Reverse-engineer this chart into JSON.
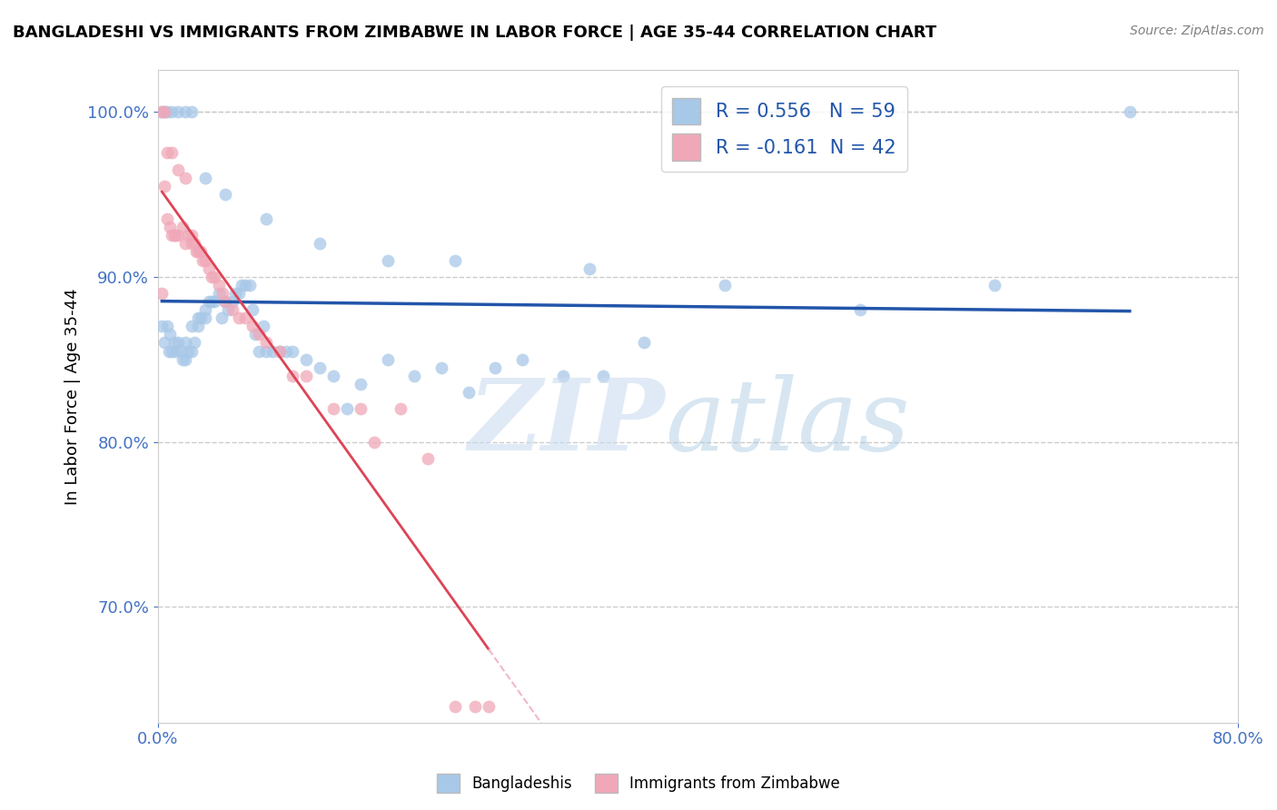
{
  "title": "BANGLADESHI VS IMMIGRANTS FROM ZIMBABWE IN LABOR FORCE | AGE 35-44 CORRELATION CHART",
  "source": "Source: ZipAtlas.com",
  "ylabel": "In Labor Force | Age 35-44",
  "xlim": [
    0.0,
    0.8
  ],
  "ylim": [
    0.63,
    1.025
  ],
  "yticks": [
    0.7,
    0.8,
    0.9,
    1.0
  ],
  "blue_R": 0.556,
  "blue_N": 59,
  "pink_R": -0.161,
  "pink_N": 42,
  "blue_color": "#a8c8e8",
  "pink_color": "#f0a8b8",
  "blue_line_color": "#2255aa",
  "pink_line_color": "#dd4455",
  "pink_dash_color": "#f0b8c8",
  "legend_label_blue": "Bangladeshis",
  "legend_label_pink": "Immigrants from Zimbabwe",
  "blue_scatter_x": [
    0.003,
    0.005,
    0.007,
    0.008,
    0.009,
    0.01,
    0.012,
    0.013,
    0.015,
    0.017,
    0.018,
    0.02,
    0.02,
    0.022,
    0.025,
    0.025,
    0.027,
    0.03,
    0.03,
    0.032,
    0.035,
    0.035,
    0.038,
    0.04,
    0.042,
    0.045,
    0.047,
    0.05,
    0.052,
    0.055,
    0.057,
    0.06,
    0.062,
    0.065,
    0.068,
    0.07,
    0.072,
    0.075,
    0.078,
    0.08,
    0.085,
    0.09,
    0.095,
    0.1,
    0.11,
    0.12,
    0.13,
    0.14,
    0.15,
    0.17,
    0.19,
    0.21,
    0.23,
    0.25,
    0.27,
    0.3,
    0.33,
    0.36,
    0.72
  ],
  "blue_scatter_y": [
    0.87,
    0.86,
    0.87,
    0.855,
    0.865,
    0.855,
    0.86,
    0.855,
    0.86,
    0.855,
    0.85,
    0.86,
    0.85,
    0.855,
    0.855,
    0.87,
    0.86,
    0.875,
    0.87,
    0.875,
    0.88,
    0.875,
    0.885,
    0.885,
    0.885,
    0.89,
    0.875,
    0.885,
    0.88,
    0.885,
    0.89,
    0.89,
    0.895,
    0.895,
    0.895,
    0.88,
    0.865,
    0.855,
    0.87,
    0.855,
    0.855,
    0.855,
    0.855,
    0.855,
    0.85,
    0.845,
    0.84,
    0.82,
    0.835,
    0.85,
    0.84,
    0.845,
    0.83,
    0.845,
    0.85,
    0.84,
    0.84,
    0.86,
    1.0
  ],
  "pink_scatter_x": [
    0.003,
    0.005,
    0.007,
    0.009,
    0.01,
    0.012,
    0.013,
    0.015,
    0.018,
    0.02,
    0.022,
    0.025,
    0.025,
    0.027,
    0.028,
    0.03,
    0.032,
    0.033,
    0.035,
    0.038,
    0.04,
    0.042,
    0.045,
    0.048,
    0.05,
    0.055,
    0.06,
    0.065,
    0.07,
    0.075,
    0.08,
    0.09,
    0.1,
    0.11,
    0.13,
    0.15,
    0.16,
    0.18,
    0.2,
    0.22,
    0.235,
    0.245
  ],
  "pink_scatter_y": [
    0.89,
    0.955,
    0.935,
    0.93,
    0.925,
    0.925,
    0.925,
    0.925,
    0.93,
    0.92,
    0.925,
    0.92,
    0.925,
    0.92,
    0.915,
    0.915,
    0.915,
    0.91,
    0.91,
    0.905,
    0.9,
    0.9,
    0.895,
    0.89,
    0.885,
    0.88,
    0.875,
    0.875,
    0.87,
    0.865,
    0.86,
    0.855,
    0.84,
    0.84,
    0.82,
    0.82,
    0.8,
    0.82,
    0.79,
    0.64,
    0.64,
    0.64
  ],
  "pink_top_x": [
    0.003,
    0.005,
    0.007,
    0.01,
    0.015,
    0.02
  ],
  "pink_top_y": [
    1.0,
    1.0,
    0.975,
    0.975,
    0.965,
    0.96
  ],
  "blue_top_x": [
    0.003,
    0.005,
    0.007,
    0.01,
    0.015,
    0.02,
    0.025,
    0.035,
    0.05,
    0.08,
    0.12,
    0.17,
    0.22,
    0.32,
    0.42,
    0.52,
    0.62
  ],
  "blue_top_y": [
    1.0,
    1.0,
    1.0,
    1.0,
    1.0,
    1.0,
    1.0,
    0.96,
    0.95,
    0.935,
    0.92,
    0.91,
    0.91,
    0.905,
    0.895,
    0.88,
    0.895
  ]
}
